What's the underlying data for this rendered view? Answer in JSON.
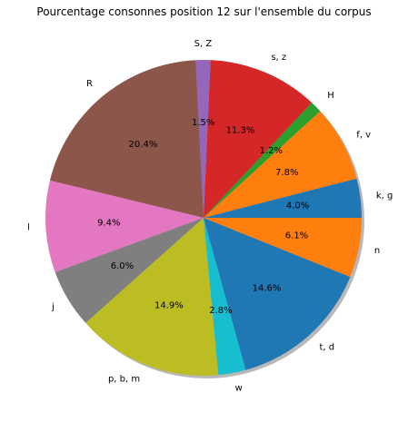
{
  "chart_data": {
    "type": "pie",
    "title": "Pourcentage consonnes position 12 sur l'ensemble du corpus",
    "start_angle": 0,
    "direction": "counterclockwise",
    "shadow": true,
    "slices": [
      {
        "label": "k, g",
        "value": 4.0,
        "pct_label": "4.0%",
        "color": "#1f77b4"
      },
      {
        "label": "f, v",
        "value": 7.8,
        "pct_label": "7.8%",
        "color": "#ff7f0e"
      },
      {
        "label": "H",
        "value": 1.2,
        "pct_label": "1.2%",
        "color": "#2ca02c"
      },
      {
        "label": "s, z",
        "value": 11.3,
        "pct_label": "11.3%",
        "color": "#d62728"
      },
      {
        "label": "S, Z",
        "value": 1.5,
        "pct_label": "1.5%",
        "color": "#9467bd"
      },
      {
        "label": "R",
        "value": 20.4,
        "pct_label": "20.4%",
        "color": "#8c564b"
      },
      {
        "label": "l",
        "value": 9.4,
        "pct_label": "9.4%",
        "color": "#e377c2"
      },
      {
        "label": "j",
        "value": 6.0,
        "pct_label": "6.0%",
        "color": "#7f7f7f"
      },
      {
        "label": "p, b, m",
        "value": 14.9,
        "pct_label": "14.9%",
        "color": "#bcbd22"
      },
      {
        "label": "w",
        "value": 2.8,
        "pct_label": "2.8%",
        "color": "#17becf"
      },
      {
        "label": "t, d",
        "value": 14.6,
        "pct_label": "14.6%",
        "color": "#1f77b4"
      },
      {
        "label": "n",
        "value": 6.1,
        "pct_label": "6.1%",
        "color": "#ff7f0e"
      }
    ]
  }
}
